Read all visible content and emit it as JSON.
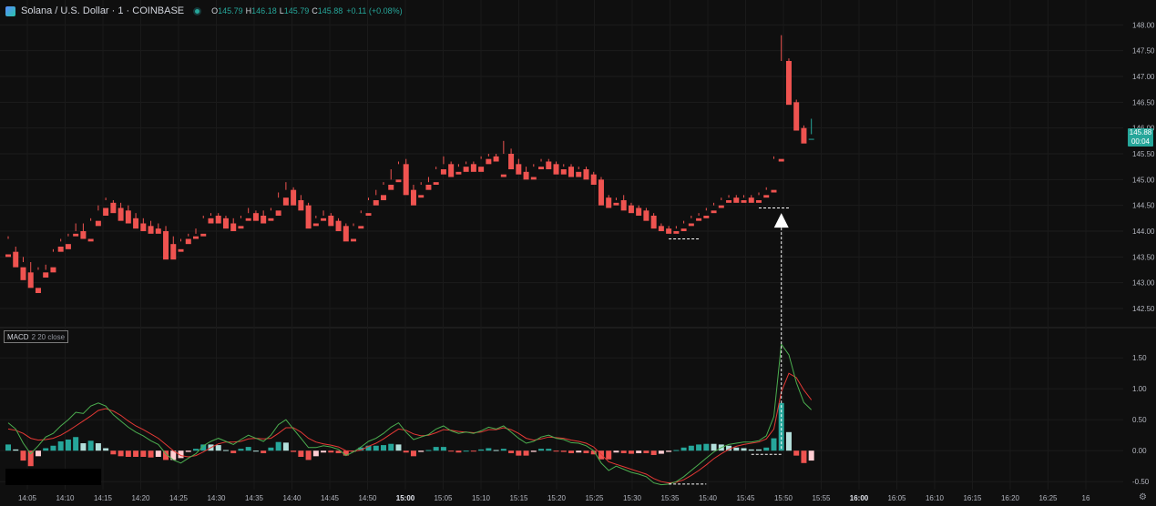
{
  "header": {
    "title": "Solana / U.S. Dollar · 1 · COINBASE",
    "open_key": "O",
    "open": "145.79",
    "high_key": "H",
    "high": "146.18",
    "low_key": "L",
    "low": "145.79",
    "close_key": "C",
    "close": "145.88",
    "change": "+0.11 (+0.08%)"
  },
  "macd_indicator": {
    "name": "MACD",
    "params": "2 20 close"
  },
  "last_price_tag": {
    "price": "145.88",
    "countdown": "00:04"
  },
  "colors": {
    "background": "#0f0f0f",
    "up": "#26a69a",
    "down": "#ef5350",
    "macd_line": "#4caf50",
    "signal_line": "#e53935",
    "hist_up_strong": "#26a69a",
    "hist_up_weak": "#b2dfdb",
    "hist_down_strong": "#ef5350",
    "hist_down_weak": "#ffcdd2",
    "annotation": "#ffffff"
  },
  "chart_data": {
    "type": "candlestick",
    "price_axis": {
      "ylim": [
        142.2,
        148.2
      ],
      "ticks": [
        "148.00",
        "147.50",
        "147.00",
        "146.50",
        "146.00",
        "145.50",
        "145.00",
        "144.50",
        "144.00",
        "143.50",
        "143.00",
        "142.50"
      ]
    },
    "time_axis": {
      "labels": [
        "14:05",
        "14:10",
        "14:15",
        "14:20",
        "14:25",
        "14:30",
        "14:35",
        "14:40",
        "14:45",
        "14:50",
        "15:00",
        "15:05",
        "15:10",
        "15:15",
        "15:20",
        "15:25",
        "15:30",
        "15:35",
        "15:40",
        "15:45",
        "15:50",
        "15:55",
        "16:00",
        "16:05",
        "16:10",
        "16:15",
        "16:20",
        "16:25",
        "16"
      ],
      "bold_labels": [
        "15:00",
        "16:00"
      ]
    },
    "candles": [
      [
        143.55,
        143.9,
        143.85,
        143.5
      ],
      [
        143.6,
        143.7,
        143.6,
        143.3
      ],
      [
        143.3,
        143.5,
        143.4,
        143.05
      ],
      [
        143.2,
        143.4,
        142.95,
        142.9
      ],
      [
        142.9,
        143.3,
        143.25,
        142.8
      ],
      [
        143.2,
        143.35,
        143.25,
        143.1
      ],
      [
        143.3,
        143.65,
        143.6,
        143.2
      ],
      [
        143.7,
        143.85,
        143.8,
        143.6
      ],
      [
        143.75,
        143.95,
        143.9,
        143.65
      ],
      [
        143.95,
        144.15,
        144.0,
        143.9
      ],
      [
        144.0,
        144.15,
        143.95,
        143.85
      ],
      [
        143.85,
        144.25,
        144.2,
        143.8
      ],
      [
        144.2,
        144.5,
        144.4,
        144.1
      ],
      [
        144.45,
        144.65,
        144.6,
        144.3
      ],
      [
        144.55,
        144.6,
        144.5,
        144.35
      ],
      [
        144.45,
        144.55,
        144.3,
        144.2
      ],
      [
        144.4,
        144.5,
        144.25,
        144.15
      ],
      [
        144.25,
        144.35,
        144.15,
        144.05
      ],
      [
        144.15,
        144.25,
        144.1,
        144.0
      ],
      [
        144.1,
        144.2,
        144.05,
        143.95
      ],
      [
        144.05,
        144.15,
        144.0,
        143.95
      ],
      [
        144.0,
        144.1,
        143.75,
        143.45
      ],
      [
        143.75,
        143.9,
        143.65,
        143.45
      ],
      [
        143.65,
        143.85,
        143.8,
        143.6
      ],
      [
        143.85,
        143.95,
        143.9,
        143.75
      ],
      [
        143.9,
        144.05,
        143.95,
        143.85
      ],
      [
        143.95,
        144.3,
        144.25,
        143.9
      ],
      [
        144.25,
        144.35,
        144.3,
        144.15
      ],
      [
        144.3,
        144.35,
        144.25,
        144.15
      ],
      [
        144.25,
        144.3,
        144.15,
        144.05
      ],
      [
        144.15,
        144.25,
        144.1,
        144.0
      ],
      [
        144.1,
        144.3,
        144.25,
        144.05
      ],
      [
        144.25,
        144.45,
        144.35,
        144.2
      ],
      [
        144.35,
        144.4,
        144.3,
        144.2
      ],
      [
        144.3,
        144.4,
        144.25,
        144.15
      ],
      [
        144.25,
        144.45,
        144.4,
        144.2
      ],
      [
        144.4,
        144.75,
        144.65,
        144.3
      ],
      [
        144.65,
        144.95,
        144.8,
        144.5
      ],
      [
        144.8,
        144.85,
        144.6,
        144.5
      ],
      [
        144.6,
        144.7,
        144.5,
        144.4
      ],
      [
        144.5,
        144.55,
        144.15,
        144.05
      ],
      [
        144.15,
        144.3,
        144.25,
        144.1
      ],
      [
        144.25,
        144.4,
        144.3,
        144.2
      ],
      [
        144.3,
        144.35,
        144.2,
        144.1
      ],
      [
        144.2,
        144.25,
        144.1,
        144.0
      ],
      [
        144.1,
        144.15,
        143.85,
        143.8
      ],
      [
        143.85,
        144.15,
        144.1,
        143.8
      ],
      [
        144.1,
        144.4,
        144.35,
        144.05
      ],
      [
        144.35,
        144.65,
        144.6,
        144.3
      ],
      [
        144.6,
        144.8,
        144.7,
        144.5
      ],
      [
        144.7,
        144.95,
        144.9,
        144.6
      ],
      [
        144.9,
        145.2,
        145.0,
        144.8
      ],
      [
        145.0,
        145.35,
        145.3,
        144.95
      ],
      [
        145.3,
        145.4,
        144.8,
        144.7
      ],
      [
        144.8,
        144.9,
        144.7,
        144.5
      ],
      [
        144.7,
        144.95,
        144.9,
        144.65
      ],
      [
        144.9,
        145.05,
        144.95,
        144.8
      ],
      [
        144.95,
        145.25,
        145.2,
        144.9
      ],
      [
        145.2,
        145.45,
        145.3,
        145.1
      ],
      [
        145.3,
        145.35,
        145.15,
        145.05
      ],
      [
        145.15,
        145.3,
        145.25,
        145.1
      ],
      [
        145.25,
        145.35,
        145.3,
        145.15
      ],
      [
        145.3,
        145.35,
        145.25,
        145.15
      ],
      [
        145.25,
        145.45,
        145.4,
        145.15
      ],
      [
        145.4,
        145.5,
        145.45,
        145.3
      ],
      [
        145.45,
        145.5,
        145.4,
        145.35
      ],
      [
        145.1,
        145.75,
        145.5,
        145.05
      ],
      [
        145.5,
        145.6,
        145.3,
        145.2
      ],
      [
        145.3,
        145.4,
        145.15,
        145.1
      ],
      [
        145.15,
        145.25,
        145.05,
        145.0
      ],
      [
        145.05,
        145.3,
        145.25,
        145.0
      ],
      [
        145.25,
        145.4,
        145.35,
        145.2
      ],
      [
        145.35,
        145.4,
        145.3,
        145.2
      ],
      [
        145.3,
        145.35,
        145.2,
        145.1
      ],
      [
        145.2,
        145.3,
        145.25,
        145.1
      ],
      [
        145.25,
        145.3,
        145.15,
        145.05
      ],
      [
        145.15,
        145.25,
        145.2,
        145.05
      ],
      [
        145.2,
        145.25,
        145.1,
        145.0
      ],
      [
        145.1,
        145.15,
        145.0,
        144.9
      ],
      [
        145.0,
        145.05,
        144.65,
        144.5
      ],
      [
        144.65,
        144.7,
        144.55,
        144.45
      ],
      [
        144.55,
        144.65,
        144.6,
        144.5
      ],
      [
        144.6,
        144.7,
        144.5,
        144.4
      ],
      [
        144.5,
        144.55,
        144.45,
        144.35
      ],
      [
        144.45,
        144.5,
        144.4,
        144.3
      ],
      [
        144.4,
        144.45,
        144.3,
        144.2
      ],
      [
        144.3,
        144.35,
        144.1,
        144.05
      ],
      [
        144.1,
        144.15,
        144.05,
        144.0
      ],
      [
        144.05,
        144.1,
        144.0,
        143.95
      ],
      [
        144.0,
        144.1,
        144.05,
        143.95
      ],
      [
        144.05,
        144.2,
        144.15,
        144.0
      ],
      [
        144.15,
        144.3,
        144.25,
        144.1
      ],
      [
        144.25,
        144.35,
        144.3,
        144.2
      ],
      [
        144.3,
        144.45,
        144.4,
        144.25
      ],
      [
        144.4,
        144.55,
        144.5,
        144.35
      ],
      [
        144.5,
        144.65,
        144.6,
        144.45
      ],
      [
        144.6,
        144.7,
        144.65,
        144.55
      ],
      [
        144.65,
        144.7,
        144.6,
        144.55
      ],
      [
        144.6,
        144.7,
        144.65,
        144.55
      ],
      [
        144.65,
        144.7,
        144.6,
        144.55
      ],
      [
        144.6,
        144.75,
        144.7,
        144.55
      ],
      [
        144.7,
        144.85,
        144.8,
        144.65
      ],
      [
        144.8,
        145.45,
        145.4,
        144.75
      ],
      [
        145.4,
        147.8,
        147.3,
        145.35
      ],
      [
        147.3,
        147.35,
        146.5,
        146.45
      ],
      [
        146.5,
        146.55,
        146.0,
        145.95
      ],
      [
        146.0,
        146.05,
        145.75,
        145.7
      ],
      [
        145.79,
        146.18,
        145.88,
        145.79
      ]
    ],
    "macd": {
      "ylim": [
        -0.6,
        1.9
      ],
      "ticks": [
        "1.50",
        "1.00",
        "0.50",
        "0.00",
        "-0.50"
      ],
      "macd_line": [
        0.45,
        0.35,
        0.12,
        -0.05,
        0.08,
        0.22,
        0.28,
        0.4,
        0.5,
        0.62,
        0.6,
        0.72,
        0.77,
        0.72,
        0.58,
        0.48,
        0.38,
        0.3,
        0.24,
        0.16,
        0.1,
        -0.05,
        -0.15,
        -0.2,
        -0.12,
        -0.05,
        0.08,
        0.15,
        0.2,
        0.15,
        0.1,
        0.18,
        0.25,
        0.2,
        0.15,
        0.25,
        0.42,
        0.5,
        0.35,
        0.2,
        0.05,
        0.05,
        0.08,
        0.06,
        0.02,
        -0.08,
        -0.02,
        0.06,
        0.15,
        0.2,
        0.28,
        0.38,
        0.45,
        0.3,
        0.18,
        0.22,
        0.26,
        0.35,
        0.4,
        0.32,
        0.28,
        0.3,
        0.28,
        0.32,
        0.38,
        0.35,
        0.4,
        0.3,
        0.2,
        0.12,
        0.15,
        0.22,
        0.25,
        0.2,
        0.18,
        0.13,
        0.12,
        0.08,
        0.0,
        -0.2,
        -0.32,
        -0.25,
        -0.3,
        -0.35,
        -0.38,
        -0.42,
        -0.52,
        -0.55,
        -0.54,
        -0.5,
        -0.42,
        -0.32,
        -0.22,
        -0.12,
        -0.02,
        0.05,
        0.1,
        0.12,
        0.14,
        0.14,
        0.16,
        0.24,
        0.55,
        1.72,
        1.55,
        1.1,
        0.78,
        0.66
      ],
      "signal_line": [
        0.35,
        0.33,
        0.28,
        0.2,
        0.17,
        0.18,
        0.2,
        0.25,
        0.32,
        0.4,
        0.48,
        0.56,
        0.65,
        0.68,
        0.64,
        0.57,
        0.48,
        0.4,
        0.34,
        0.27,
        0.2,
        0.1,
        0.0,
        -0.08,
        -0.1,
        -0.08,
        -0.02,
        0.05,
        0.11,
        0.14,
        0.14,
        0.15,
        0.19,
        0.2,
        0.19,
        0.2,
        0.28,
        0.37,
        0.37,
        0.3,
        0.2,
        0.14,
        0.11,
        0.09,
        0.06,
        0.0,
        -0.01,
        0.01,
        0.07,
        0.12,
        0.19,
        0.27,
        0.35,
        0.33,
        0.27,
        0.24,
        0.25,
        0.29,
        0.34,
        0.33,
        0.31,
        0.3,
        0.29,
        0.3,
        0.34,
        0.34,
        0.37,
        0.34,
        0.28,
        0.2,
        0.17,
        0.19,
        0.22,
        0.21,
        0.2,
        0.17,
        0.15,
        0.12,
        0.06,
        -0.06,
        -0.18,
        -0.22,
        -0.26,
        -0.3,
        -0.34,
        -0.38,
        -0.45,
        -0.5,
        -0.52,
        -0.51,
        -0.47,
        -0.4,
        -0.32,
        -0.23,
        -0.13,
        -0.05,
        0.02,
        0.07,
        0.1,
        0.12,
        0.14,
        0.19,
        0.35,
        0.95,
        1.25,
        1.18,
        0.98,
        0.82
      ]
    },
    "annotations": [
      {
        "type": "dashed-line",
        "price_from": 144.45,
        "price_to": 144.45,
        "bar_from": 100,
        "bar_to": 104
      },
      {
        "type": "dashed-line",
        "price_from": 143.85,
        "price_to": 143.85,
        "bar_from": 88,
        "bar_to": 92
      },
      {
        "type": "arrow-up",
        "bar": 103,
        "price": 144.35
      }
    ]
  }
}
